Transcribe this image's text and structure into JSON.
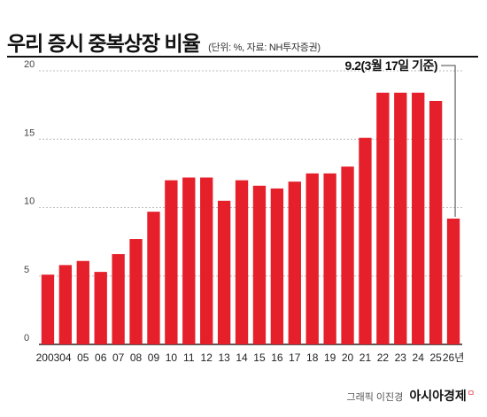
{
  "header": {
    "title": "우리 증시 중복상장 비율",
    "subtitle": "(단위: %, 자료: NH투자증권)"
  },
  "credit": {
    "graphic": "그래픽 이진경",
    "brand": "아시아경제",
    "mark": "ㅁ"
  },
  "colors": {
    "bar": "#e5202b",
    "grid": "#bbbbbb",
    "axis": "#222222"
  },
  "chart_data": {
    "type": "bar",
    "categories": [
      "2003",
      "04",
      "05",
      "06",
      "07",
      "08",
      "09",
      "10",
      "11",
      "12",
      "13",
      "14",
      "15",
      "16",
      "17",
      "18",
      "19",
      "20",
      "21",
      "22",
      "23",
      "24",
      "25",
      "26년"
    ],
    "values": [
      5.1,
      5.8,
      6.1,
      5.3,
      6.6,
      7.7,
      9.7,
      12.0,
      12.2,
      12.2,
      10.5,
      12.0,
      11.6,
      11.4,
      11.9,
      12.5,
      12.5,
      13.0,
      15.1,
      18.4,
      18.4,
      18.4,
      17.8,
      9.2
    ],
    "yticks": [
      0,
      5,
      10,
      15,
      20
    ],
    "ylim": [
      0,
      20
    ],
    "grid": true,
    "annotation": {
      "text": "9.2(3월 17일 기준)",
      "category": "26년",
      "value": 9.2
    }
  }
}
